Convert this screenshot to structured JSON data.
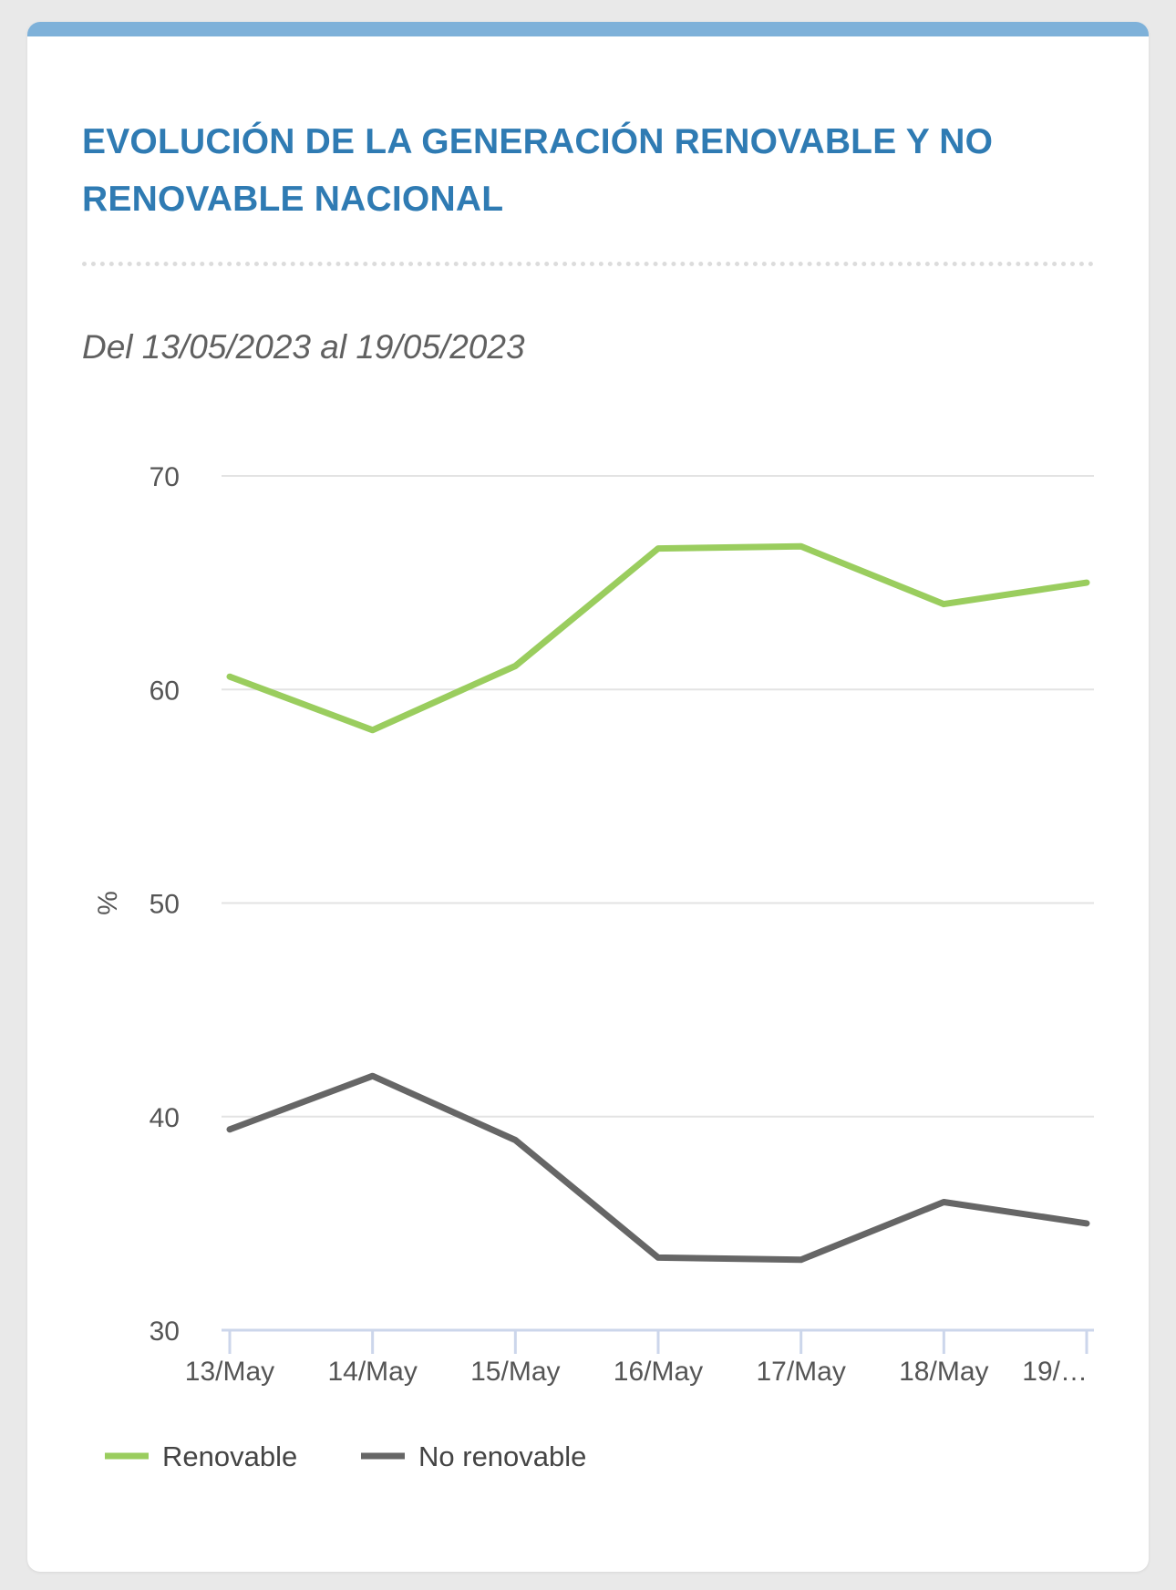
{
  "card": {
    "title": "EVOLUCIÓN DE LA GENERACIÓN RENOVABLE Y NO RENOVABLE NACIONAL",
    "subtitle": "Del 13/05/2023 al 19/05/2023"
  },
  "chart_data": {
    "type": "line",
    "title": "EVOLUCIÓN DE LA GENERACIÓN RENOVABLE Y NO RENOVABLE NACIONAL",
    "subtitle": "Del 13/05/2023 al 19/05/2023",
    "xlabel": "",
    "ylabel": "%",
    "categories": [
      "13/May",
      "14/May",
      "15/May",
      "16/May",
      "17/May",
      "18/May",
      "19/…"
    ],
    "ylim": [
      30,
      70
    ],
    "yticks": [
      "70",
      "60",
      "50",
      "40",
      "30"
    ],
    "grid": true,
    "legend_position": "bottom-left",
    "series": [
      {
        "name": "Renovable",
        "color": "#9acd5e",
        "values": [
          60.6,
          58.1,
          61.1,
          66.6,
          66.7,
          64.0,
          65.0
        ]
      },
      {
        "name": "No renovable",
        "color": "#666666",
        "values": [
          39.4,
          41.9,
          38.9,
          33.4,
          33.3,
          36.0,
          35.0
        ]
      }
    ]
  }
}
